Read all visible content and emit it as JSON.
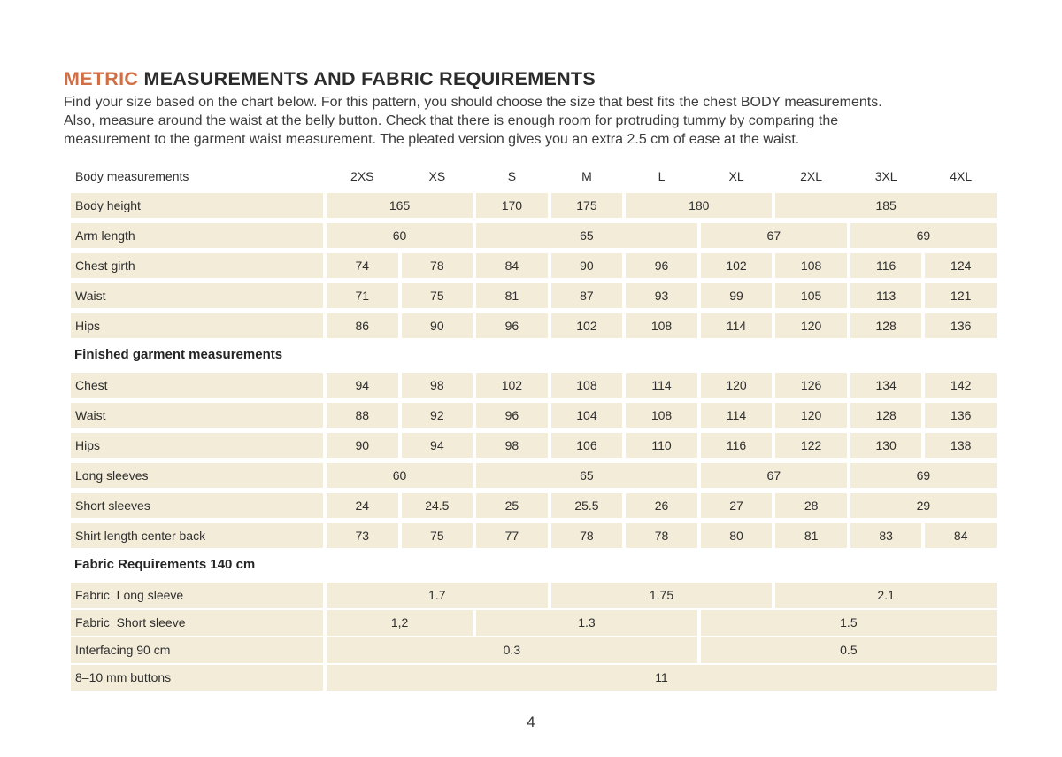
{
  "colors": {
    "accent": "#d06f45",
    "cell_bg": "#f3ecd9",
    "text": "#2b2b2b"
  },
  "header": {
    "title_accent": "METRIC",
    "title_rest": " MEASUREMENTS AND FABRIC REQUIREMENTS",
    "intro_lines": [
      "Find your size based on the chart below. For this pattern, you should choose the size that best fits the chest BODY measurements.",
      "Also, measure around the waist at the belly button. Check that there is enough room for protruding tummy by comparing the",
      "measurement to the garment waist measurement. The pleated version gives you an extra 2.5 cm of ease at the waist."
    ]
  },
  "table": {
    "header": {
      "label": "Body measurements",
      "sizes": [
        "2XS",
        "XS",
        "S",
        "M",
        "L",
        "XL",
        "2XL",
        "3XL",
        "4XL"
      ]
    },
    "sections": [
      {
        "header": null,
        "compact": false,
        "rows": [
          {
            "label": "Body height",
            "cells": [
              {
                "v": "165",
                "s": 2
              },
              {
                "v": "170",
                "s": 1
              },
              {
                "v": "175",
                "s": 1
              },
              {
                "v": "180",
                "s": 2
              },
              {
                "v": "185",
                "s": 3
              }
            ]
          },
          {
            "label": "Arm length",
            "cells": [
              {
                "v": "60",
                "s": 2
              },
              {
                "v": "65",
                "s": 3
              },
              {
                "v": "67",
                "s": 2
              },
              {
                "v": "69",
                "s": 2
              }
            ]
          },
          {
            "label": "Chest girth",
            "cells": [
              {
                "v": "74",
                "s": 1
              },
              {
                "v": "78",
                "s": 1
              },
              {
                "v": "84",
                "s": 1
              },
              {
                "v": "90",
                "s": 1
              },
              {
                "v": "96",
                "s": 1
              },
              {
                "v": "102",
                "s": 1
              },
              {
                "v": "108",
                "s": 1
              },
              {
                "v": "116",
                "s": 1
              },
              {
                "v": "124",
                "s": 1
              }
            ]
          },
          {
            "label": "Waist",
            "cells": [
              {
                "v": "71",
                "s": 1
              },
              {
                "v": "75",
                "s": 1
              },
              {
                "v": "81",
                "s": 1
              },
              {
                "v": "87",
                "s": 1
              },
              {
                "v": "93",
                "s": 1
              },
              {
                "v": "99",
                "s": 1
              },
              {
                "v": "105",
                "s": 1
              },
              {
                "v": "113",
                "s": 1
              },
              {
                "v": "121",
                "s": 1
              }
            ]
          },
          {
            "label": "Hips",
            "cells": [
              {
                "v": "86",
                "s": 1
              },
              {
                "v": "90",
                "s": 1
              },
              {
                "v": "96",
                "s": 1
              },
              {
                "v": "102",
                "s": 1
              },
              {
                "v": "108",
                "s": 1
              },
              {
                "v": "114",
                "s": 1
              },
              {
                "v": "120",
                "s": 1
              },
              {
                "v": "128",
                "s": 1
              },
              {
                "v": "136",
                "s": 1
              }
            ]
          }
        ]
      },
      {
        "header": "Finished garment measurements",
        "compact": false,
        "rows": [
          {
            "label": "Chest",
            "cells": [
              {
                "v": "94",
                "s": 1
              },
              {
                "v": "98",
                "s": 1
              },
              {
                "v": "102",
                "s": 1
              },
              {
                "v": "108",
                "s": 1
              },
              {
                "v": "114",
                "s": 1
              },
              {
                "v": "120",
                "s": 1
              },
              {
                "v": "126",
                "s": 1
              },
              {
                "v": "134",
                "s": 1
              },
              {
                "v": "142",
                "s": 1
              }
            ]
          },
          {
            "label": "Waist",
            "cells": [
              {
                "v": "88",
                "s": 1
              },
              {
                "v": "92",
                "s": 1
              },
              {
                "v": "96",
                "s": 1
              },
              {
                "v": "104",
                "s": 1
              },
              {
                "v": "108",
                "s": 1
              },
              {
                "v": "114",
                "s": 1
              },
              {
                "v": "120",
                "s": 1
              },
              {
                "v": "128",
                "s": 1
              },
              {
                "v": "136",
                "s": 1
              }
            ]
          },
          {
            "label": "Hips",
            "cells": [
              {
                "v": "90",
                "s": 1
              },
              {
                "v": "94",
                "s": 1
              },
              {
                "v": "98",
                "s": 1
              },
              {
                "v": "106",
                "s": 1
              },
              {
                "v": "110",
                "s": 1
              },
              {
                "v": "116",
                "s": 1
              },
              {
                "v": "122",
                "s": 1
              },
              {
                "v": "130",
                "s": 1
              },
              {
                "v": "138",
                "s": 1
              }
            ]
          },
          {
            "label": "Long sleeves",
            "cells": [
              {
                "v": "60",
                "s": 2
              },
              {
                "v": "65",
                "s": 3
              },
              {
                "v": "67",
                "s": 2
              },
              {
                "v": "69",
                "s": 2
              }
            ]
          },
          {
            "label": "Short sleeves",
            "cells": [
              {
                "v": "24",
                "s": 1
              },
              {
                "v": "24.5",
                "s": 1
              },
              {
                "v": "25",
                "s": 1
              },
              {
                "v": "25.5",
                "s": 1
              },
              {
                "v": "26",
                "s": 1
              },
              {
                "v": "27",
                "s": 1
              },
              {
                "v": "28",
                "s": 1
              },
              {
                "v": "29",
                "s": 2
              }
            ]
          },
          {
            "label": "Shirt length center back",
            "cells": [
              {
                "v": "73",
                "s": 1
              },
              {
                "v": "75",
                "s": 1
              },
              {
                "v": "77",
                "s": 1
              },
              {
                "v": "78",
                "s": 1
              },
              {
                "v": "78",
                "s": 1
              },
              {
                "v": "80",
                "s": 1
              },
              {
                "v": "81",
                "s": 1
              },
              {
                "v": "83",
                "s": 1
              },
              {
                "v": "84",
                "s": 1
              }
            ]
          }
        ]
      },
      {
        "header": "Fabric Requirements 140 cm",
        "compact": true,
        "rows": [
          {
            "label": "Fabric  Long sleeve",
            "cells": [
              {
                "v": "1.7",
                "s": 3
              },
              {
                "v": "1.75",
                "s": 3
              },
              {
                "v": "2.1",
                "s": 3
              }
            ]
          },
          {
            "label": "Fabric  Short sleeve",
            "cells": [
              {
                "v": "1,2",
                "s": 2
              },
              {
                "v": "1.3",
                "s": 3
              },
              {
                "v": "1.5",
                "s": 4
              }
            ]
          },
          {
            "label": "Interfacing 90 cm",
            "cells": [
              {
                "v": "0.3",
                "s": 5
              },
              {
                "v": "0.5",
                "s": 4
              }
            ]
          },
          {
            "label": "8–10 mm buttons",
            "cells": [
              {
                "v": "11",
                "s": 9
              }
            ]
          }
        ]
      }
    ]
  },
  "footer": {
    "page_number": "4"
  }
}
